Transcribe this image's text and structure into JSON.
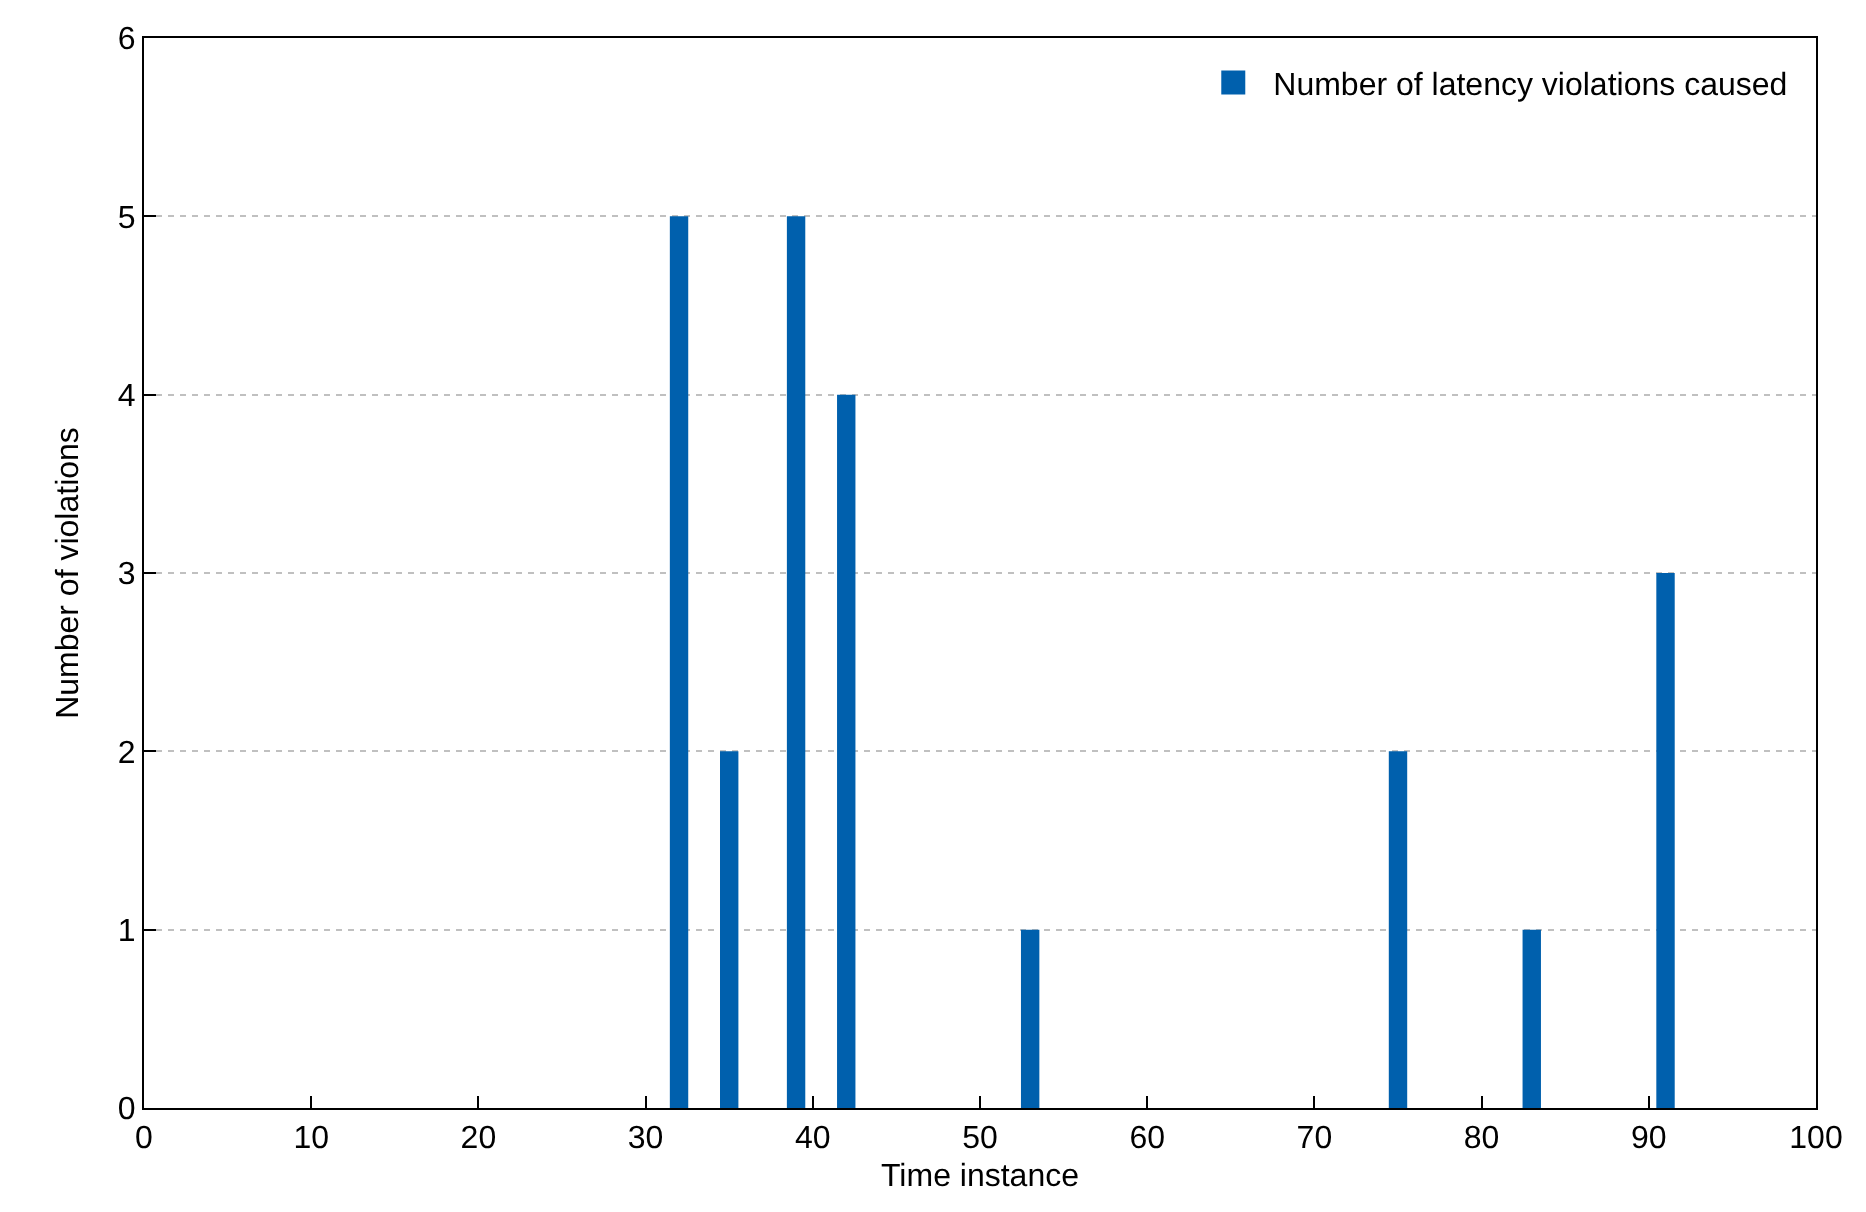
{
  "chart_data": {
    "type": "bar",
    "xlabel": "Time instance",
    "ylabel": "Number of violations",
    "x": [
      32,
      35,
      39,
      42,
      53,
      75,
      83,
      91
    ],
    "series": [
      {
        "name": "Number of latency violations caused",
        "color": "#0060ad",
        "values": [
          5,
          2,
          5,
          4,
          1,
          2,
          1,
          3
        ]
      }
    ],
    "xlim": [
      0,
      100
    ],
    "xticks": [
      0,
      10,
      20,
      30,
      40,
      50,
      60,
      70,
      80,
      90,
      100
    ],
    "ylim": [
      0,
      6
    ],
    "yticks": [
      0,
      1,
      2,
      3,
      4,
      5,
      6
    ],
    "grid": "y",
    "legend": "top right"
  }
}
